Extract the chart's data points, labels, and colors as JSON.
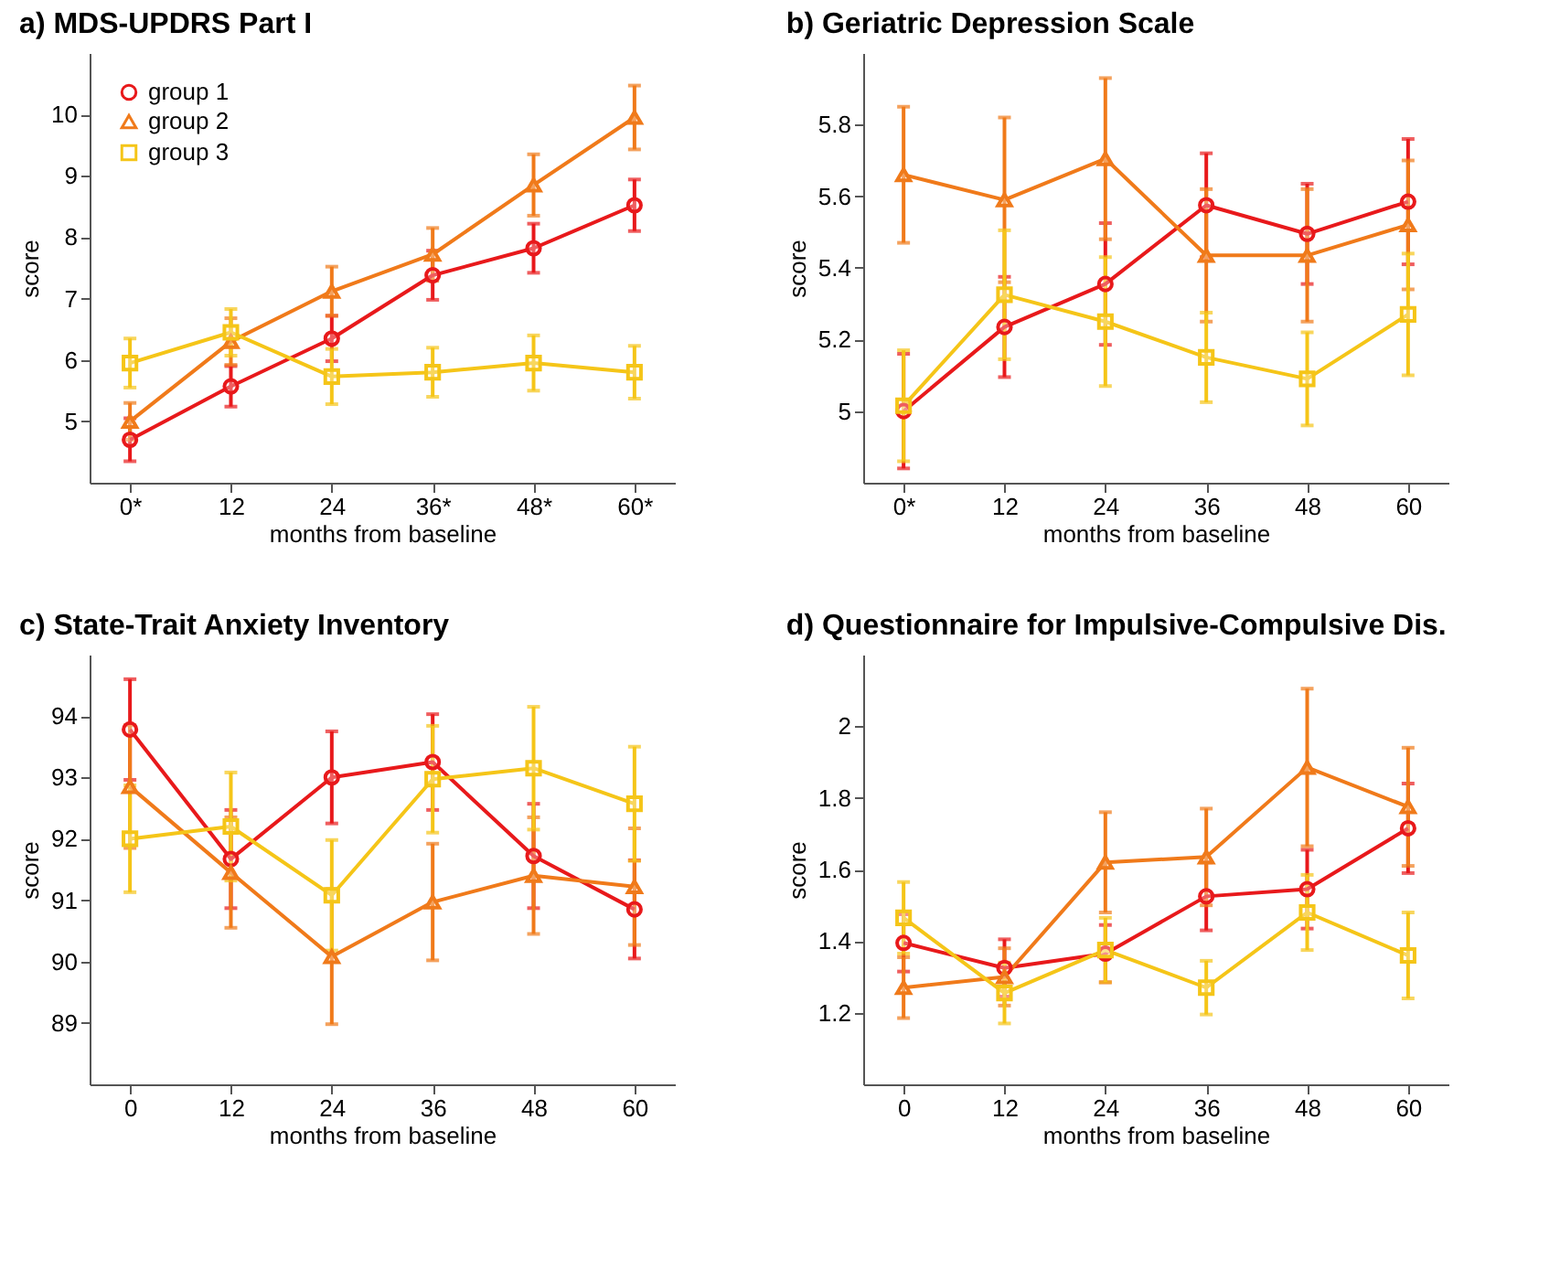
{
  "chart_data": [
    {
      "type": "line",
      "title": "a) MDS-UPDRS Part I",
      "xlabel": "months from baseline",
      "ylabel": "score",
      "categories": [
        "0*",
        "12",
        "24",
        "36*",
        "48*",
        "60*"
      ],
      "ylim": [
        4,
        11
      ],
      "yticks": [
        5,
        6,
        7,
        8,
        9,
        10
      ],
      "grid": false,
      "legend": "top left",
      "series": [
        {
          "name": "group 1",
          "color": "#e8191b",
          "marker": "circle",
          "values": [
            4.7,
            5.57,
            6.35,
            7.38,
            7.82,
            8.52
          ],
          "errors": [
            0.35,
            0.33,
            0.37,
            0.4,
            0.4,
            0.42
          ]
        },
        {
          "name": "group 2",
          "color": "#f07a1a",
          "marker": "triangle",
          "values": [
            5.0,
            6.3,
            7.12,
            7.72,
            8.85,
            9.95
          ],
          "errors": [
            0.3,
            0.38,
            0.4,
            0.43,
            0.5,
            0.52
          ]
        },
        {
          "name": "group 3",
          "color": "#f5c518",
          "marker": "square",
          "values": [
            5.95,
            6.45,
            5.73,
            5.8,
            5.95,
            5.8
          ],
          "errors": [
            0.4,
            0.38,
            0.45,
            0.4,
            0.45,
            0.43
          ]
        }
      ]
    },
    {
      "type": "line",
      "title": "b) Geriatric Depression Scale",
      "xlabel": "months from baseline",
      "ylabel": "score",
      "categories": [
        "0*",
        "12",
        "24",
        "36",
        "48",
        "60"
      ],
      "ylim": [
        4.8,
        6.0
      ],
      "yticks": [
        5,
        5.2,
        5.4,
        5.6,
        5.8
      ],
      "grid": false,
      "legend": false,
      "series": [
        {
          "color": "#e8191b",
          "marker": "circle",
          "values": [
            5.0,
            5.235,
            5.355,
            5.575,
            5.495,
            5.585
          ],
          "errors": [
            0.16,
            0.14,
            0.17,
            0.145,
            0.14,
            0.175
          ]
        },
        {
          "color": "#f07a1a",
          "marker": "triangle",
          "values": [
            5.66,
            5.59,
            5.705,
            5.435,
            5.435,
            5.52
          ],
          "errors": [
            0.19,
            0.23,
            0.225,
            0.185,
            0.185,
            0.18
          ]
        },
        {
          "color": "#f5c518",
          "marker": "square",
          "values": [
            5.015,
            5.325,
            5.25,
            5.15,
            5.09,
            5.27
          ],
          "errors": [
            0.155,
            0.18,
            0.18,
            0.125,
            0.13,
            0.17
          ]
        }
      ]
    },
    {
      "type": "line",
      "title": "c) State-Trait Anxiety Inventory",
      "xlabel": "months from baseline",
      "ylabel": "score",
      "categories": [
        "0",
        "12",
        "24",
        "36",
        "48",
        "60"
      ],
      "ylim": [
        88,
        95
      ],
      "yticks": [
        89,
        90,
        91,
        92,
        93,
        94
      ],
      "grid": false,
      "legend": false,
      "series": [
        {
          "color": "#e8191b",
          "marker": "circle",
          "values": [
            93.78,
            91.67,
            93.0,
            93.25,
            91.72,
            90.85
          ],
          "errors": [
            0.82,
            0.8,
            0.75,
            0.78,
            0.85,
            0.8
          ]
        },
        {
          "color": "#f07a1a",
          "marker": "triangle",
          "values": [
            92.85,
            91.45,
            90.08,
            90.97,
            91.4,
            91.22
          ],
          "errors": [
            1.0,
            0.9,
            1.1,
            0.95,
            0.95,
            0.95
          ]
        },
        {
          "color": "#f5c518",
          "marker": "square",
          "values": [
            92.0,
            92.2,
            91.08,
            92.97,
            93.15,
            92.57
          ],
          "errors": [
            0.87,
            0.88,
            0.9,
            0.87,
            1.0,
            0.93
          ]
        }
      ]
    },
    {
      "type": "line",
      "title": "d) Questionnaire for Impulsive-Compulsive Dis.",
      "xlabel": "months from baseline",
      "ylabel": "score",
      "categories": [
        "0",
        "12",
        "24",
        "36",
        "48",
        "60"
      ],
      "ylim": [
        1.0,
        2.2
      ],
      "yticks": [
        1.2,
        1.4,
        1.6,
        1.8,
        2
      ],
      "grid": false,
      "legend": false,
      "series": [
        {
          "color": "#e8191b",
          "marker": "circle",
          "values": [
            1.395,
            1.325,
            1.365,
            1.525,
            1.545,
            1.715
          ],
          "errors": [
            0.08,
            0.08,
            0.08,
            0.095,
            0.11,
            0.125
          ]
        },
        {
          "color": "#f07a1a",
          "marker": "triangle",
          "values": [
            1.27,
            1.3,
            1.62,
            1.635,
            1.885,
            1.775
          ],
          "errors": [
            0.085,
            0.08,
            0.14,
            0.135,
            0.22,
            0.165
          ]
        },
        {
          "color": "#f5c518",
          "marker": "square",
          "values": [
            1.465,
            1.255,
            1.375,
            1.27,
            1.48,
            1.36
          ],
          "errors": [
            0.1,
            0.085,
            0.09,
            0.075,
            0.105,
            0.12
          ]
        }
      ]
    }
  ]
}
